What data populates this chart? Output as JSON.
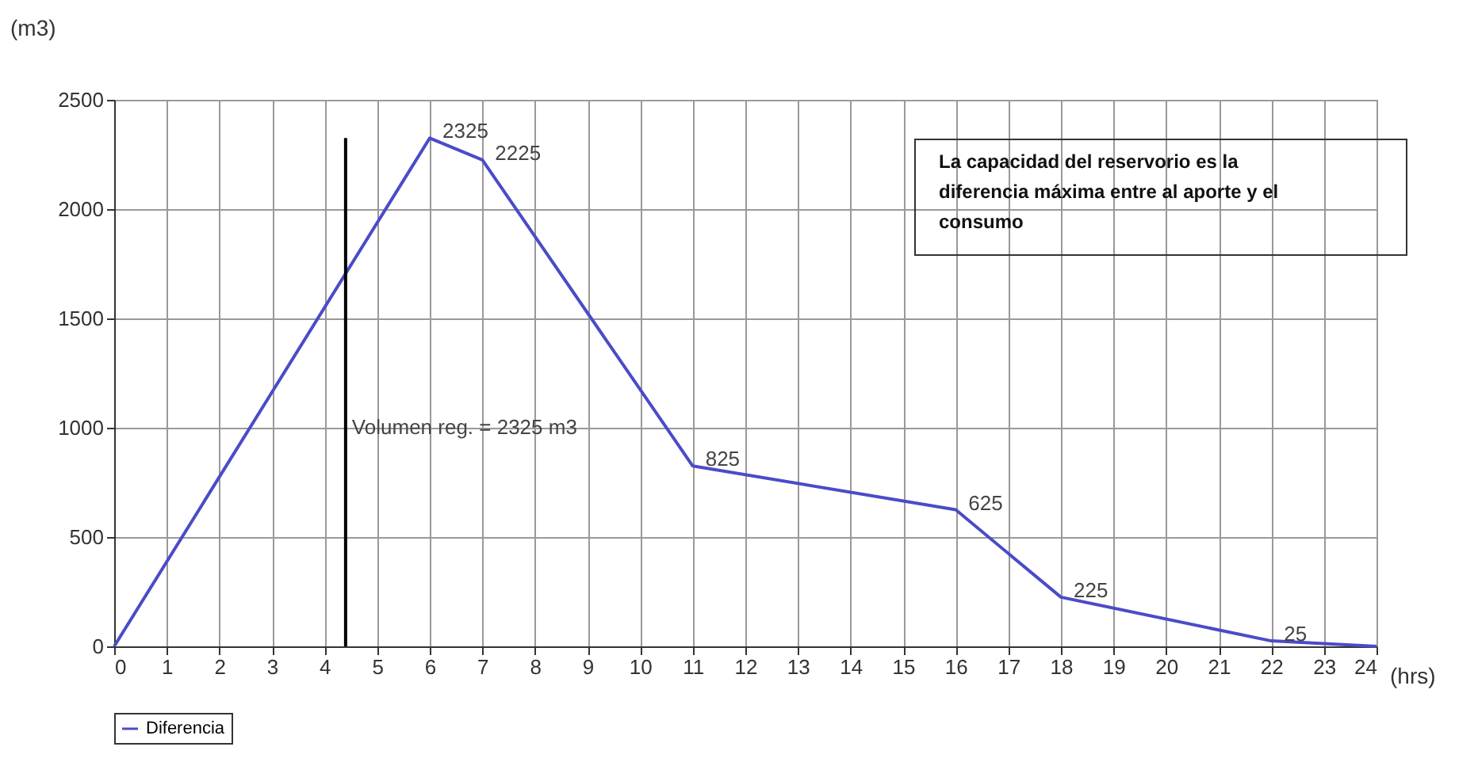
{
  "chart_data": {
    "type": "line",
    "xlabel": "(hrs)",
    "ylabel": "(m3)",
    "xlim": [
      0,
      24
    ],
    "xticks": [
      0,
      1,
      2,
      3,
      4,
      5,
      6,
      7,
      8,
      9,
      10,
      11,
      12,
      13,
      14,
      15,
      16,
      17,
      18,
      19,
      20,
      21,
      22,
      23,
      24
    ],
    "ylim": [
      0,
      2500
    ],
    "yticks": [
      0,
      500,
      1000,
      1500,
      2000,
      2500
    ],
    "grid": true,
    "legend": "bottom",
    "marker": "none",
    "line_style": "solid",
    "series": [
      {
        "name": "Diferencia",
        "color": "#4b4bc8",
        "x": [
          0,
          6,
          7,
          11,
          16,
          18,
          22,
          24
        ],
        "values": [
          0,
          2325,
          2225,
          825,
          625,
          225,
          25,
          0
        ],
        "value_labels": [
          null,
          "2325",
          "2225",
          "825",
          "625",
          "225",
          "25",
          null
        ]
      },
      {
        "type": "line",
        "color": "#000000",
        "x": [
          4.4,
          4.4
        ],
        "values": [
          0,
          2325
        ]
      }
    ],
    "annotations": [
      {
        "text": "Volumen reg. = 2325 m3",
        "x": 4.4,
        "y": 1000
      },
      "La capacidad del reservorio es la diferencia máxima entre al aporte y el consumo"
    ]
  }
}
